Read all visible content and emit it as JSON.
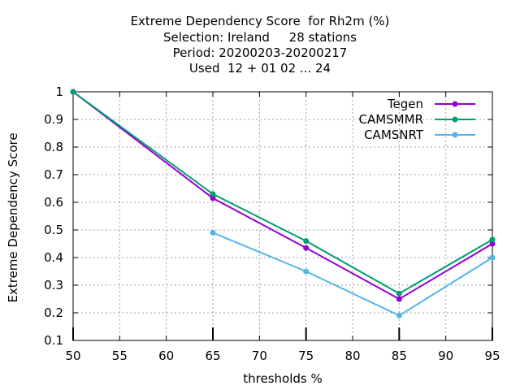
{
  "chart_data": {
    "type": "line",
    "title_lines": [
      "Extreme Dependency Score  for Rh2m (%)",
      "Selection: Ireland     28 stations",
      "Period: 20200203-20200217",
      "Used  12 + 01 02 ... 24"
    ],
    "xlabel": "thresholds %",
    "ylabel": "Extreme Dependency Score",
    "xlim": [
      50,
      95
    ],
    "ylim": [
      0.1,
      1.0
    ],
    "xticks": [
      50,
      55,
      60,
      65,
      70,
      75,
      80,
      85,
      90,
      95
    ],
    "yticks": [
      0.1,
      0.2,
      0.3,
      0.4,
      0.5,
      0.6,
      0.7,
      0.8,
      0.9,
      1.0
    ],
    "ytick_labels": [
      "0.1",
      "0.2",
      "0.3",
      "0.4",
      "0.5",
      "0.6",
      "0.7",
      "0.8",
      "0.9",
      "1"
    ],
    "grid": true,
    "legend_position": "top-right",
    "series": [
      {
        "name": "Tegen",
        "color": "#9400d3",
        "x": [
          50,
          65,
          75,
          85,
          95
        ],
        "y": [
          1.0,
          0.615,
          0.435,
          0.25,
          0.45
        ]
      },
      {
        "name": "CAMSMMR",
        "color": "#009e73",
        "x": [
          50,
          65,
          75,
          85,
          95
        ],
        "y": [
          1.0,
          0.63,
          0.46,
          0.27,
          0.465
        ]
      },
      {
        "name": "CAMSNRT",
        "color": "#56b4e9",
        "x": [
          65,
          75,
          85,
          95
        ],
        "y": [
          0.49,
          0.35,
          0.19,
          0.4
        ]
      }
    ]
  }
}
